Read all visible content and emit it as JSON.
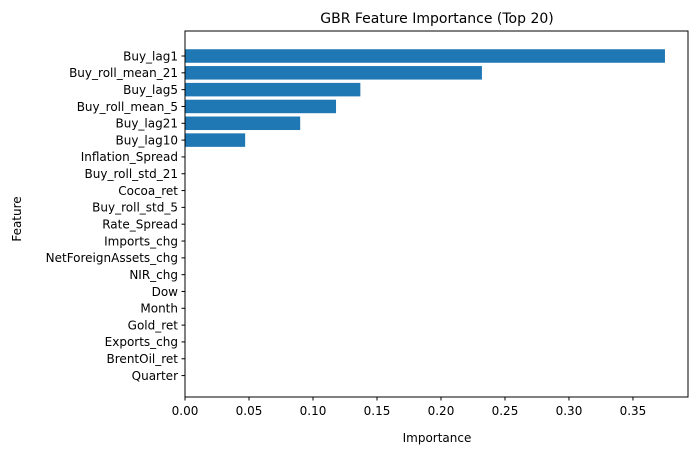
{
  "chart_data": {
    "type": "bar",
    "orientation": "horizontal",
    "title": "GBR Feature Importance (Top 20)",
    "xlabel": "Importance",
    "ylabel": "Feature",
    "xlim": [
      0,
      0.393
    ],
    "xticks": [
      0.0,
      0.05,
      0.1,
      0.15,
      0.2,
      0.25,
      0.3,
      0.35
    ],
    "xtick_labels": [
      "0.00",
      "0.05",
      "0.10",
      "0.15",
      "0.20",
      "0.25",
      "0.30",
      "0.35"
    ],
    "grid": false,
    "bar_color": "#1f77b4",
    "categories": [
      "Buy_lag1",
      "Buy_roll_mean_21",
      "Buy_lag5",
      "Buy_roll_mean_5",
      "Buy_lag21",
      "Buy_lag10",
      "Inflation_Spread",
      "Buy_roll_std_21",
      "Cocoa_ret",
      "Buy_roll_std_5",
      "Rate_Spread",
      "Imports_chg",
      "NetForeignAssets_chg",
      "NIR_chg",
      "Dow",
      "Month",
      "Gold_ret",
      "Exports_chg",
      "BrentOil_ret",
      "Quarter"
    ],
    "values": [
      0.375,
      0.232,
      0.137,
      0.118,
      0.09,
      0.047,
      0,
      0,
      0,
      0,
      0,
      0,
      0,
      0,
      0,
      0,
      0,
      0,
      0,
      0
    ]
  }
}
